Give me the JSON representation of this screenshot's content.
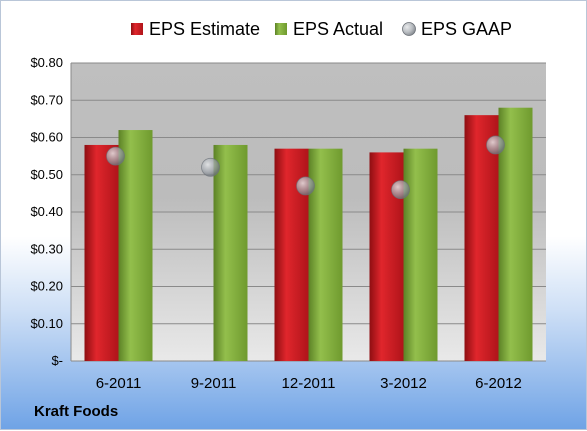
{
  "company": "Kraft Foods",
  "chart_data": {
    "type": "bar",
    "title": "",
    "xlabel": "",
    "ylabel": "",
    "categories": [
      "6-2011",
      "9-2011",
      "12-2011",
      "3-2012",
      "6-2012"
    ],
    "ylim": [
      0,
      0.8
    ],
    "yticks": [
      0,
      0.1,
      0.2,
      0.3,
      0.4,
      0.5,
      0.6,
      0.7,
      0.8
    ],
    "ytick_labels": [
      "$-",
      "$0.10",
      "$0.20",
      "$0.30",
      "$0.40",
      "$0.50",
      "$0.60",
      "$0.70",
      "$0.80"
    ],
    "grid": true,
    "legend_position": "top",
    "series": [
      {
        "name": "EPS Estimate",
        "kind": "bar",
        "color": "#c0161c",
        "values": [
          0.58,
          null,
          0.57,
          0.56,
          0.66
        ]
      },
      {
        "name": "EPS Actual",
        "kind": "bar",
        "color": "#77a033",
        "values": [
          0.62,
          0.58,
          0.57,
          0.57,
          0.68
        ]
      },
      {
        "name": "EPS GAAP",
        "kind": "scatter",
        "color": "#9aa0a8",
        "values": [
          0.55,
          0.52,
          0.47,
          0.46,
          0.58
        ]
      }
    ]
  }
}
